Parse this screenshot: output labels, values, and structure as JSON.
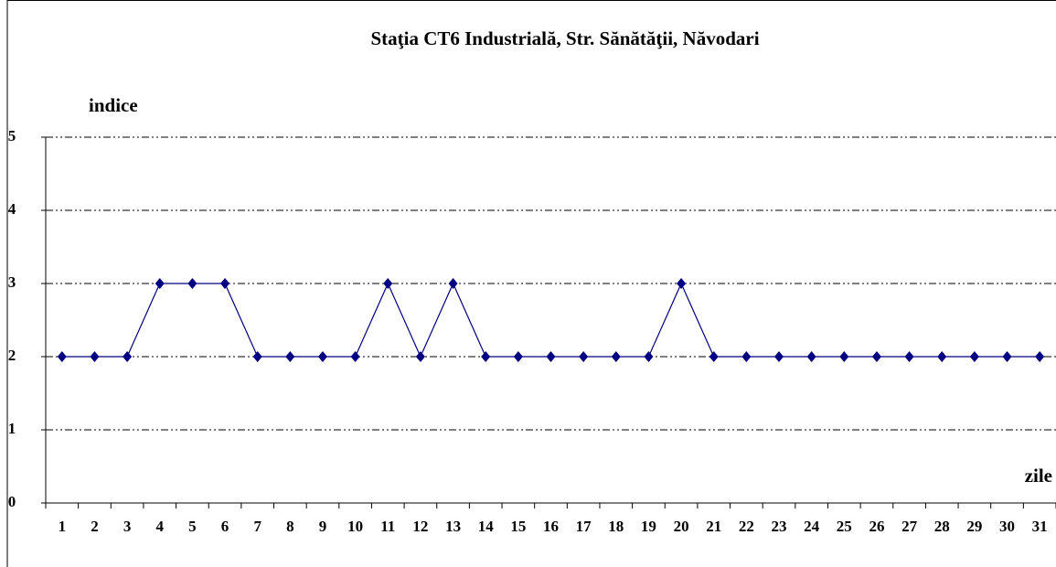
{
  "chart_data": {
    "type": "line",
    "title": "Staţia CT6 Industrială,  Str. Sănătăţii, Năvodari",
    "y_label": "indice",
    "x_label": "zile",
    "categories": [
      "1",
      "2",
      "3",
      "4",
      "5",
      "6",
      "7",
      "8",
      "9",
      "10",
      "11",
      "12",
      "13",
      "14",
      "15",
      "16",
      "17",
      "18",
      "19",
      "20",
      "21",
      "22",
      "23",
      "24",
      "25",
      "26",
      "27",
      "28",
      "29",
      "30",
      "31"
    ],
    "values": [
      2,
      2,
      2,
      3,
      3,
      3,
      2,
      2,
      2,
      2,
      3,
      2,
      3,
      2,
      2,
      2,
      2,
      2,
      2,
      3,
      2,
      2,
      2,
      2,
      2,
      2,
      2,
      2,
      2,
      2,
      2
    ],
    "color": "#000080",
    "ylim": [
      0,
      5
    ],
    "yticks": [
      0,
      1,
      2,
      3,
      4,
      5
    ],
    "grid": true
  }
}
